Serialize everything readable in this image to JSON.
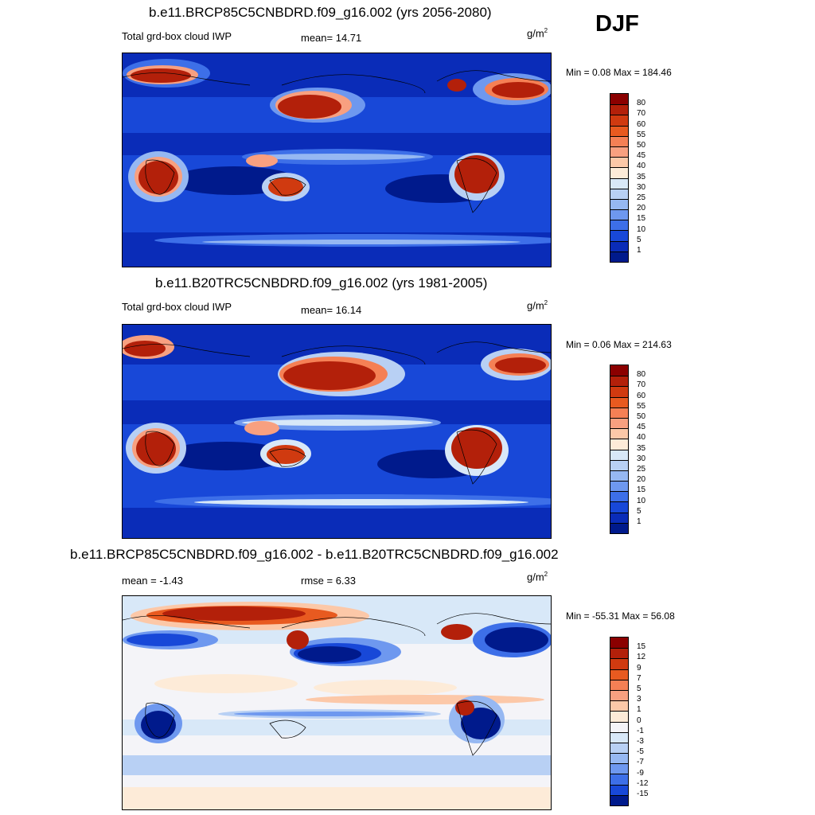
{
  "season": "DJF",
  "panels": [
    {
      "title": "b.e11.BRCP85C5CNBDRD.f09_g16.002 (yrs 2056-2080)",
      "variable": "Total grd-box cloud IWP",
      "stat": "mean=  14.71",
      "units_base": "g/m",
      "units_exp": "2",
      "minmax": "Min =   0.08 Max = 184.46",
      "colorbar": {
        "labels": [
          "80",
          "70",
          "60",
          "55",
          "50",
          "45",
          "40",
          "35",
          "30",
          "25",
          "20",
          "15",
          "10",
          "5",
          "1"
        ],
        "colors": [
          "#8b0000",
          "#b3200a",
          "#d03a10",
          "#e85a20",
          "#f58055",
          "#f8a080",
          "#fcc8a8",
          "#fdebd8",
          "#d8e8f8",
          "#b8d0f4",
          "#96b8f2",
          "#6e98ef",
          "#3d6fe8",
          "#1848d8",
          "#0a2cb8",
          "#001a8c"
        ]
      }
    },
    {
      "title": "b.e11.B20TRC5CNBDRD.f09_g16.002 (yrs 1981-2005)",
      "variable": "Total grd-box cloud IWP",
      "stat": "mean=  16.14",
      "units_base": "g/m",
      "units_exp": "2",
      "minmax": "Min =   0.06 Max = 214.63",
      "colorbar": {
        "labels": [
          "80",
          "70",
          "60",
          "55",
          "50",
          "45",
          "40",
          "35",
          "30",
          "25",
          "20",
          "15",
          "10",
          "5",
          "1"
        ],
        "colors": [
          "#8b0000",
          "#b3200a",
          "#d03a10",
          "#e85a20",
          "#f58055",
          "#f8a080",
          "#fcc8a8",
          "#fdebd8",
          "#d8e8f8",
          "#b8d0f4",
          "#96b8f2",
          "#6e98ef",
          "#3d6fe8",
          "#1848d8",
          "#0a2cb8",
          "#001a8c"
        ]
      }
    },
    {
      "title": "b.e11.BRCP85C5CNBDRD.f09_g16.002 - b.e11.B20TRC5CNBDRD.f09_g16.002",
      "stat_left": "mean =  -1.43",
      "stat": "rmse =   6.33",
      "units_base": "g/m",
      "units_exp": "2",
      "minmax": "Min = -55.31 Max =  56.08",
      "colorbar": {
        "labels": [
          "15",
          "12",
          "9",
          "7",
          "5",
          "3",
          "1",
          "0",
          "-1",
          "-3",
          "-5",
          "-7",
          "-9",
          "-12",
          "-15"
        ],
        "colors": [
          "#8b0000",
          "#b3200a",
          "#d03a10",
          "#e85a20",
          "#f58055",
          "#f8a080",
          "#fcc8a8",
          "#fdebd8",
          "#f4f4f8",
          "#d8e8f8",
          "#b8d0f4",
          "#96b8f2",
          "#6e98ef",
          "#3d6fe8",
          "#1848d8",
          "#001a8c"
        ]
      }
    }
  ]
}
